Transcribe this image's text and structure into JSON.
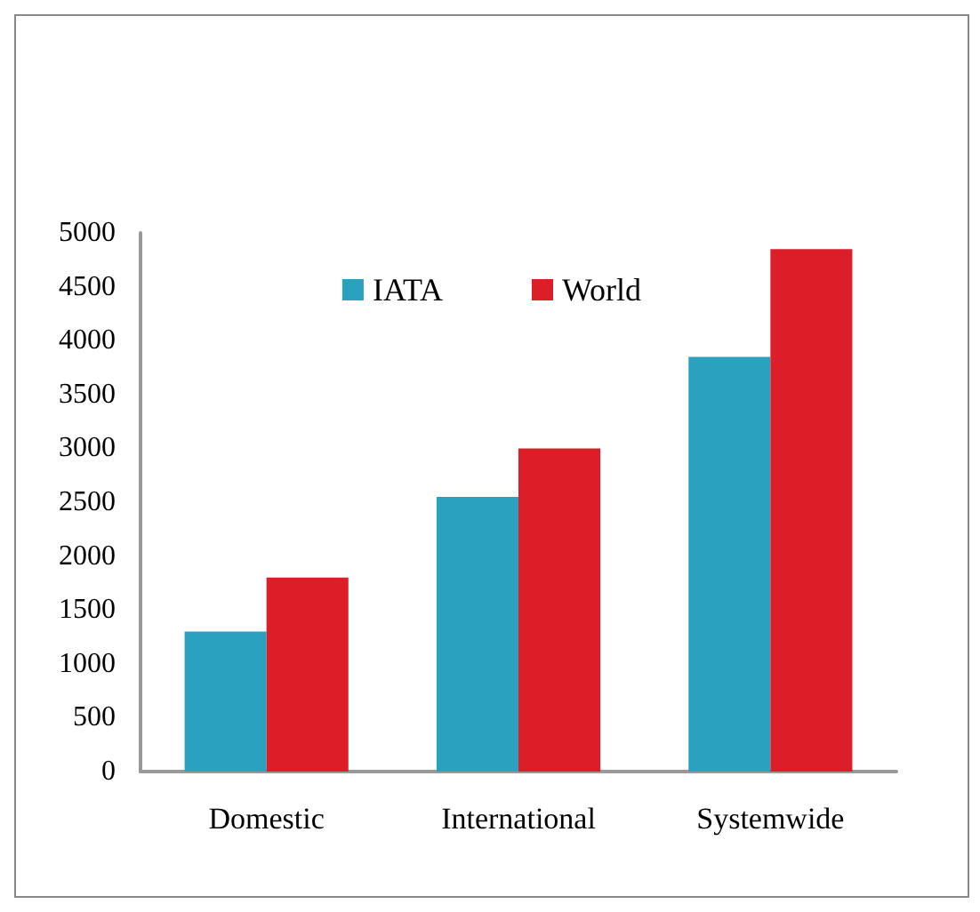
{
  "chart_data": {
    "type": "bar",
    "categories": [
      "Domestic",
      "International",
      "Systemwide"
    ],
    "series": [
      {
        "name": "IATA",
        "color": "#2ba1c0",
        "values": [
          1300,
          2550,
          3850
        ]
      },
      {
        "name": "World",
        "color": "#dc1e28",
        "values": [
          1800,
          3000,
          4850
        ]
      }
    ],
    "ylim": [
      0,
      5000
    ],
    "yticks": [
      0,
      500,
      1000,
      1500,
      2000,
      2500,
      3000,
      3500,
      4000,
      4500,
      5000
    ],
    "grid": false,
    "legend": "top"
  }
}
